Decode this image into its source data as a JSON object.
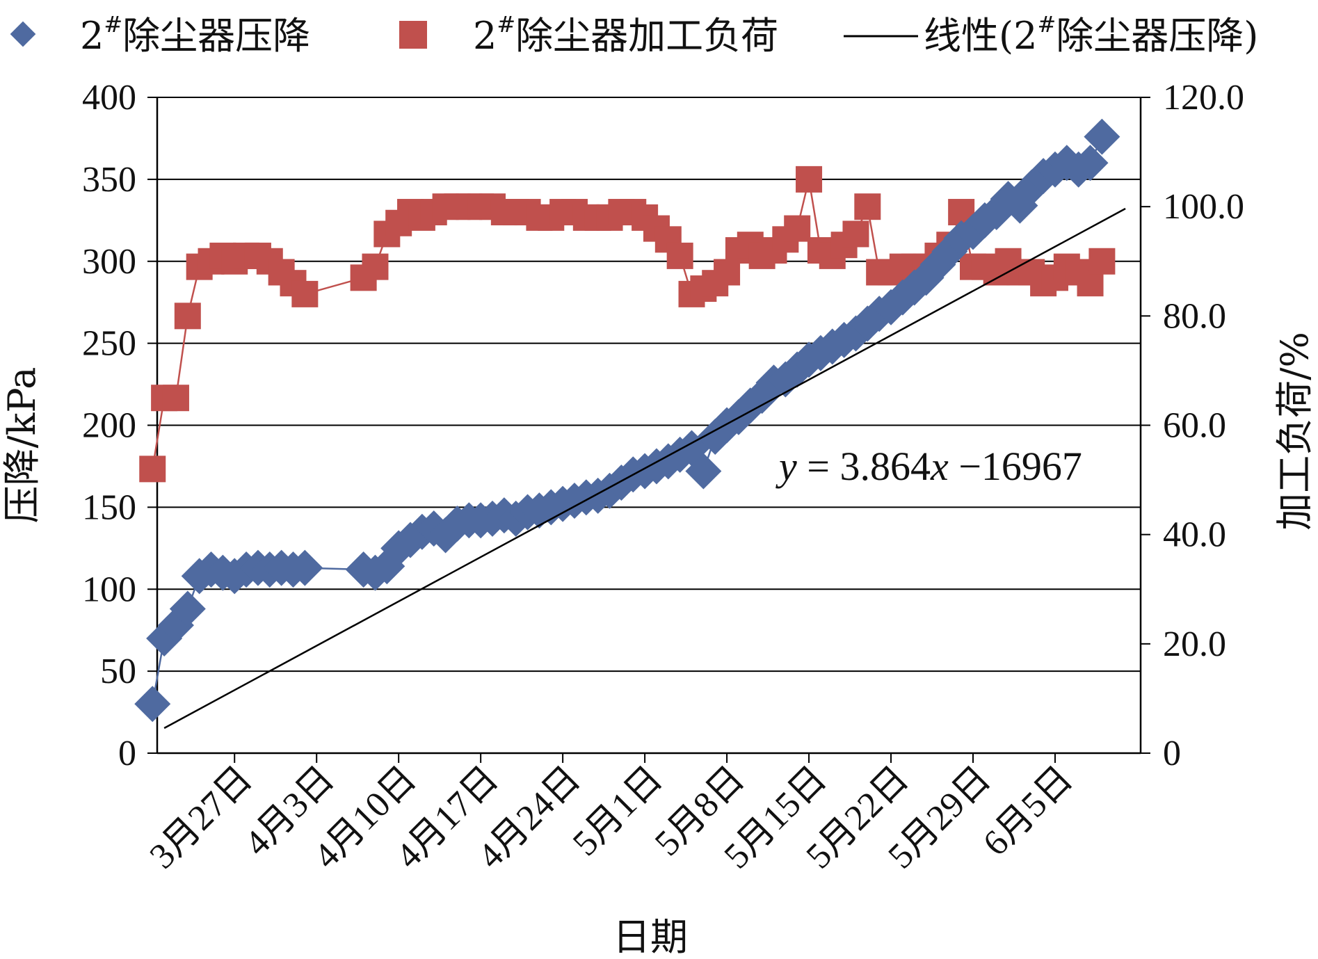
{
  "chart_data": {
    "type": "line",
    "x_unit": "day",
    "xlabel": "日期",
    "ylabel_left": "压降/kPa",
    "ylabel_right": "加工负荷/%",
    "ylim_left": [
      0,
      400
    ],
    "ylim_right": [
      0,
      120
    ],
    "yticks_left": [
      "0",
      "50",
      "100",
      "150",
      "200",
      "250",
      "300",
      "350",
      "400"
    ],
    "yticks_right": [
      "0",
      "20.0",
      "40.0",
      "60.0",
      "80.0",
      "100.0",
      "120.0"
    ],
    "xticks": [
      "3月27日",
      "4月3日",
      "4月10日",
      "4月17日",
      "4月24日",
      "5月1日",
      "5月8日",
      "5月15日",
      "5月22日",
      "5月29日",
      "6月5日"
    ],
    "grid": "horizontal",
    "legend_position": "top",
    "legend": [
      {
        "label_base": "2",
        "label_sup": "#",
        "label_rest": "除尘器压降",
        "marker": "diamond",
        "color": "#4f6aa0"
      },
      {
        "label_base": "2",
        "label_sup": "#",
        "label_rest": "除尘器加工负荷",
        "marker": "square",
        "color": "#c0504d"
      },
      {
        "label_pre": "线性(2",
        "label_sup": "#",
        "label_rest": "除尘器压降)",
        "marker": "line",
        "color": "#000000"
      }
    ],
    "trendline_equation": {
      "y": "y",
      "mid": " = 3.864",
      "x": "x",
      "rest": " −16967"
    },
    "series": [
      {
        "name": "2#除尘器压降",
        "axis": "left",
        "color": "#4f6aa0",
        "x": [
          "3月20日",
          "3月21日",
          "3月22日",
          "3月23日",
          "3月24日",
          "3月25日",
          "3月26日",
          "3月27日",
          "3月28日",
          "3月29日",
          "3月30日",
          "3月31日",
          "4月1日",
          "4月2日",
          "4月7日",
          "4月8日",
          "4月9日",
          "4月10日",
          "4月11日",
          "4月12日",
          "4月13日",
          "4月14日",
          "4月15日",
          "4月16日",
          "4月17日",
          "4月18日",
          "4月19日",
          "4月20日",
          "4月21日",
          "4月22日",
          "4月23日",
          "4月24日",
          "4月25日",
          "4月26日",
          "4月27日",
          "4月28日",
          "4月29日",
          "4月30日",
          "5月1日",
          "5月2日",
          "5月3日",
          "5月4日",
          "5月5日",
          "5月6日",
          "5月7日",
          "5月8日",
          "5月9日",
          "5月10日",
          "5月11日",
          "5月12日",
          "5月13日",
          "5月14日",
          "5月15日",
          "5月16日",
          "5月17日",
          "5月18日",
          "5月19日",
          "5月20日",
          "5月21日",
          "5月22日",
          "5月23日",
          "5月24日",
          "5月25日",
          "5月26日",
          "5月27日",
          "5月28日",
          "5月29日",
          "5月30日",
          "5月31日",
          "6月1日",
          "6月2日",
          "6月3日",
          "6月4日",
          "6月5日",
          "6月6日",
          "6月7日",
          "6月8日",
          "6月9日"
        ],
        "values": [
          30,
          70,
          78,
          88,
          108,
          112,
          110,
          108,
          112,
          113,
          112,
          113,
          112,
          113,
          112,
          110,
          114,
          125,
          130,
          135,
          137,
          133,
          140,
          142,
          142,
          143,
          145,
          143,
          147,
          148,
          150,
          152,
          154,
          156,
          157,
          160,
          165,
          170,
          172,
          175,
          178,
          182,
          186,
          172,
          193,
          200,
          205,
          212,
          218,
          226,
          228,
          234,
          240,
          244,
          248,
          252,
          256,
          262,
          268,
          272,
          278,
          284,
          290,
          298,
          306,
          314,
          318,
          325,
          330,
          338,
          334,
          345,
          352,
          356,
          360,
          356,
          360,
          376
        ]
      },
      {
        "name": "2#除尘器加工负荷",
        "axis": "right",
        "color": "#c0504d",
        "x": [
          "3月20日",
          "3月21日",
          "3月22日",
          "3月23日",
          "3月24日",
          "3月25日",
          "3月26日",
          "3月27日",
          "3月28日",
          "3月29日",
          "3月30日",
          "3月31日",
          "4月1日",
          "4月2日",
          "4月7日",
          "4月8日",
          "4月9日",
          "4月10日",
          "4月11日",
          "4月12日",
          "4月13日",
          "4月14日",
          "4月15日",
          "4月16日",
          "4月17日",
          "4月18日",
          "4月19日",
          "4月20日",
          "4月21日",
          "4月22日",
          "4月23日",
          "4月24日",
          "4月25日",
          "4月26日",
          "4月27日",
          "4月28日",
          "4月29日",
          "4月30日",
          "5月1日",
          "5月2日",
          "5月3日",
          "5月4日",
          "5月5日",
          "5月6日",
          "5月7日",
          "5月8日",
          "5月9日",
          "5月10日",
          "5月11日",
          "5月12日",
          "5月13日",
          "5月14日",
          "5月15日",
          "5月16日",
          "5月17日",
          "5月18日",
          "5月19日",
          "5月20日",
          "5月21日",
          "5月22日",
          "5月23日",
          "5月24日",
          "5月25日",
          "5月26日",
          "5月27日",
          "5月28日",
          "5月29日",
          "5月30日",
          "5月31日",
          "6月1日",
          "6月2日",
          "6月3日",
          "6月4日",
          "6月5日",
          "6月6日",
          "6月7日",
          "6月8日",
          "6月9日"
        ],
        "values": [
          52,
          65,
          65,
          80,
          89,
          90,
          91,
          90,
          91,
          91,
          90,
          88,
          86,
          84,
          87,
          89,
          95,
          97,
          99,
          98,
          99,
          100,
          100,
          100,
          100,
          100,
          99,
          99,
          99,
          98,
          98,
          99,
          99,
          98,
          98,
          98,
          99,
          99,
          98,
          96,
          94,
          91,
          84,
          85,
          86,
          88,
          92,
          93,
          91,
          92,
          94,
          96,
          105,
          92,
          91,
          93,
          95,
          100,
          88,
          88,
          89,
          89,
          89,
          91,
          93,
          99,
          89,
          89,
          88,
          90,
          88,
          88,
          86,
          87,
          89,
          88,
          86,
          90
        ]
      }
    ],
    "trendline": {
      "slope": 3.864,
      "intercept": -16967,
      "x_start": 4395,
      "x_end": 4477
    }
  }
}
